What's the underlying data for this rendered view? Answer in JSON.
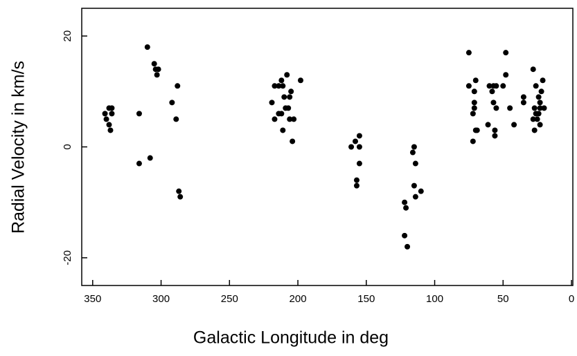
{
  "chart_data": {
    "type": "scatter",
    "xlabel": "Galactic Longitude in deg",
    "ylabel": "Radial Velocity in km/s",
    "color": "#000000",
    "xlim": [
      358,
      -1
    ],
    "ylim": [
      -25,
      25
    ],
    "xticks": [
      350,
      300,
      250,
      200,
      150,
      100,
      50,
      0
    ],
    "yticks": [
      -20,
      0,
      20
    ],
    "x": [
      341,
      338,
      336,
      336,
      340,
      338,
      337,
      316,
      316,
      310,
      308,
      305,
      304,
      303,
      302,
      292,
      288,
      289,
      287,
      286,
      219,
      217,
      214,
      212,
      208,
      205,
      210,
      214,
      212,
      211,
      217,
      207,
      209,
      206,
      203,
      204,
      198,
      206,
      211,
      161,
      158,
      155,
      155,
      155,
      157,
      157,
      122,
      121,
      122,
      120,
      115,
      116,
      114,
      115,
      114,
      110,
      75,
      75,
      72,
      71,
      71,
      71,
      70,
      72,
      70,
      69,
      61,
      60,
      58,
      57,
      55,
      57,
      55,
      56,
      56,
      50,
      48,
      48,
      45,
      42,
      35,
      35,
      28,
      26,
      24,
      23,
      20,
      22,
      21,
      27,
      26,
      24,
      25,
      23,
      27,
      23,
      28
    ],
    "y": [
      6,
      7,
      7,
      6,
      5,
      4,
      3,
      6,
      -3,
      18,
      -2,
      15,
      14,
      13,
      14,
      8,
      11,
      5,
      -8,
      -9,
      8,
      11,
      11,
      12,
      13,
      10,
      9,
      6,
      6,
      3,
      5,
      7,
      7,
      5,
      5,
      1,
      12,
      9,
      11,
      0,
      1,
      2,
      0,
      -3,
      -6,
      -7,
      -10,
      -11,
      -16,
      -18,
      0,
      -1,
      -3,
      -7,
      -9,
      -8,
      17,
      11,
      6,
      7,
      8,
      10,
      12,
      1,
      3,
      3,
      4,
      11,
      10,
      11,
      11,
      8,
      7,
      3,
      2,
      11,
      13,
      17,
      7,
      4,
      8,
      9,
      14,
      11,
      9,
      8,
      7,
      10,
      12,
      7,
      6,
      6,
      5,
      7,
      3,
      4,
      5
    ]
  }
}
